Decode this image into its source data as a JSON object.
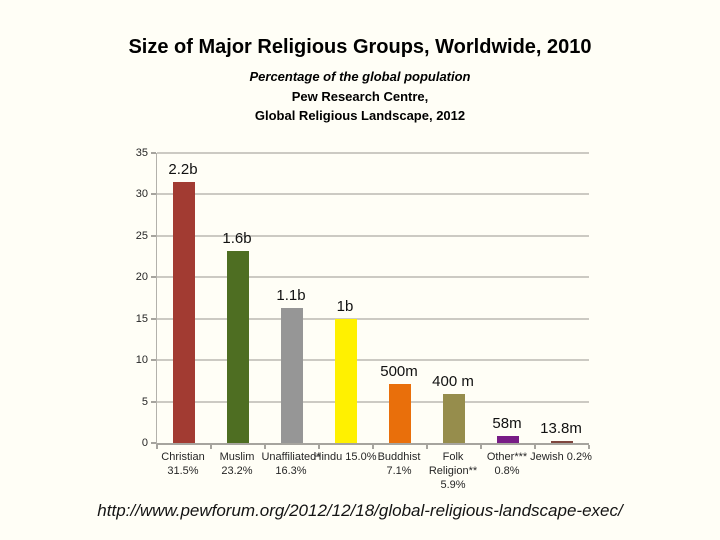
{
  "header": {
    "title": "Size of Major Religious Groups, Worldwide, 2010",
    "subtitle": "Percentage of the global population",
    "org_line": "Pew Research Centre,",
    "report_line": "Global Religious Landscape, 2012"
  },
  "footer": {
    "source_url": "http://www.pewforum.org/2012/12/18/global-religious-landscape-exec/"
  },
  "chart_data": {
    "type": "bar",
    "title": "Size of Major Religious Groups, Worldwide, 2010",
    "subtitle": "Percentage of the global population",
    "source": "Pew Research Centre, Global Religious Landscape, 2012",
    "xlabel": "",
    "ylabel": "",
    "ylim": [
      0,
      35
    ],
    "yticks": [
      0,
      5,
      10,
      15,
      20,
      25,
      30,
      35
    ],
    "grid": true,
    "legend": false,
    "categories": [
      "Christian 31.5%",
      "Muslim 23.2%",
      "Unaffiliated* 16.3%",
      "Hindu 15.0%",
      "Buddhist 7.1%",
      "Folk Religion** 5.9%",
      "Other*** 0.8%",
      "Jewish 0.2%"
    ],
    "category_label_lines": [
      [
        "Christian",
        "31.5%"
      ],
      [
        "Muslim",
        "23.2%"
      ],
      [
        "Unaffiliated*",
        "16.3%"
      ],
      [
        "Hindu 15.0%"
      ],
      [
        "Buddhist",
        "7.1%"
      ],
      [
        "Folk",
        "Religion**",
        "5.9%"
      ],
      [
        "Other***",
        "0.8%"
      ],
      [
        "Jewish 0.2%"
      ]
    ],
    "values": [
      31.5,
      23.2,
      16.3,
      15.0,
      7.1,
      5.9,
      0.8,
      0.2
    ],
    "bar_labels": [
      "2.2b",
      "1.6b",
      "1.1b",
      "1b",
      "500m",
      "400 m",
      "58m",
      "13.8m"
    ],
    "bar_colors": [
      "#a23b32",
      "#4e6e22",
      "#969696",
      "#fff100",
      "#e96f0b",
      "#968d4c",
      "#781c86",
      "#7e463e"
    ],
    "gridline_color": "#cccac3",
    "axis_color": "#a6a49e"
  }
}
